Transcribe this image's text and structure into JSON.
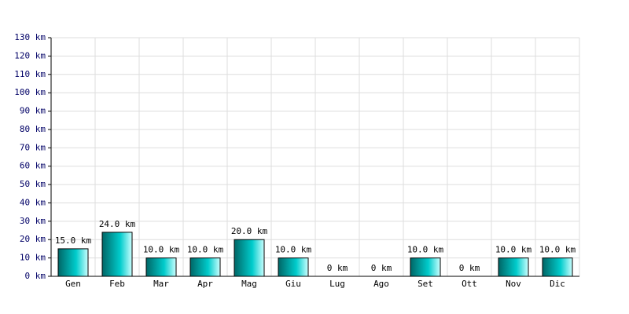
{
  "chart_data": {
    "type": "bar",
    "categories": [
      "Gen",
      "Feb",
      "Mar",
      "Apr",
      "Mag",
      "Giu",
      "Lug",
      "Ago",
      "Set",
      "Ott",
      "Nov",
      "Dic"
    ],
    "values": [
      15,
      24,
      10,
      10,
      20,
      10,
      0,
      0,
      10,
      0,
      10,
      10
    ],
    "value_labels": [
      "15.0 km",
      "24.0 km",
      "10.0 km",
      "10.0 km",
      "20.0 km",
      "10.0 km",
      "0 km",
      "0 km",
      "10.0 km",
      "0 km",
      "10.0 km",
      "10.0 km"
    ],
    "color": "#00cccc",
    "ylim": [
      0,
      130
    ],
    "yticks": [
      {
        "value": 0,
        "label": "0 km"
      },
      {
        "value": 10,
        "label": "10 km"
      },
      {
        "value": 20,
        "label": "20 km"
      },
      {
        "value": 30,
        "label": "30 km"
      },
      {
        "value": 40,
        "label": "40 km"
      },
      {
        "value": 50,
        "label": "50 km"
      },
      {
        "value": 60,
        "label": "60 km"
      },
      {
        "value": 70,
        "label": "70 km"
      },
      {
        "value": 80,
        "label": "80 km"
      },
      {
        "value": 90,
        "label": "90 km"
      },
      {
        "value": 100,
        "label": "100 km"
      },
      {
        "value": 110,
        "label": "110 km"
      },
      {
        "value": 120,
        "label": "120 km"
      },
      {
        "value": 130,
        "label": "130 km"
      }
    ],
    "grid": true
  }
}
